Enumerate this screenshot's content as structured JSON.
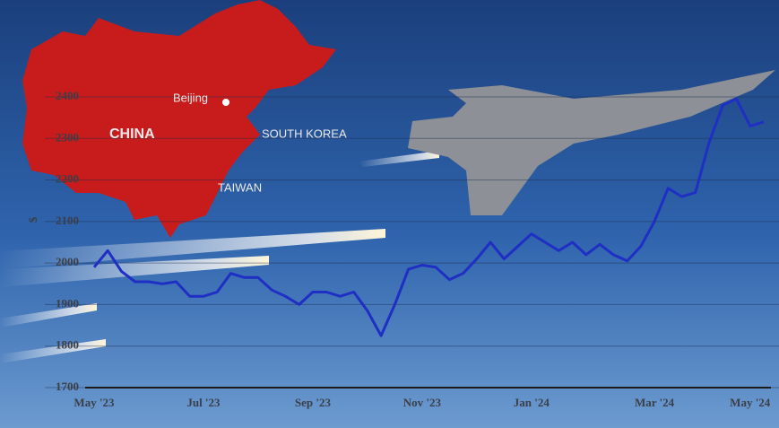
{
  "chart_data": {
    "type": "line",
    "y_label": "$",
    "categories": [
      "May '23",
      null,
      null,
      null,
      null,
      null,
      null,
      null,
      "Jul '23",
      null,
      null,
      null,
      null,
      null,
      null,
      null,
      "Sep '23",
      null,
      null,
      null,
      null,
      null,
      null,
      null,
      "Nov '23",
      null,
      null,
      null,
      null,
      null,
      null,
      null,
      "Jan '24",
      null,
      null,
      null,
      null,
      null,
      null,
      null,
      null,
      "Mar '24",
      null,
      null,
      null,
      null,
      null,
      null,
      "May '24",
      null
    ],
    "series": [
      {
        "color": "#1f2fc4",
        "values": [
          1990,
          2030,
          1980,
          1955,
          1955,
          1950,
          1955,
          1920,
          1920,
          1930,
          1975,
          1965,
          1965,
          1935,
          1920,
          1900,
          1930,
          1930,
          1920,
          1930,
          1885,
          1825,
          1900,
          1985,
          1995,
          1990,
          1960,
          1975,
          2010,
          2050,
          2010,
          2040,
          2070,
          2050,
          2030,
          2050,
          2020,
          2045,
          2020,
          2005,
          2040,
          2100,
          2180,
          2160,
          2170,
          2290,
          2380,
          2395,
          2330,
          2340
        ]
      }
    ],
    "ylim": [
      1700,
      2400
    ],
    "yticks": [
      1700,
      1800,
      1900,
      2000,
      2100,
      2200,
      2300,
      2400
    ],
    "grid": true,
    "annotations": [
      "Beijing",
      "CHINA",
      "SOUTH KOREA",
      "TAIWAN"
    ]
  }
}
